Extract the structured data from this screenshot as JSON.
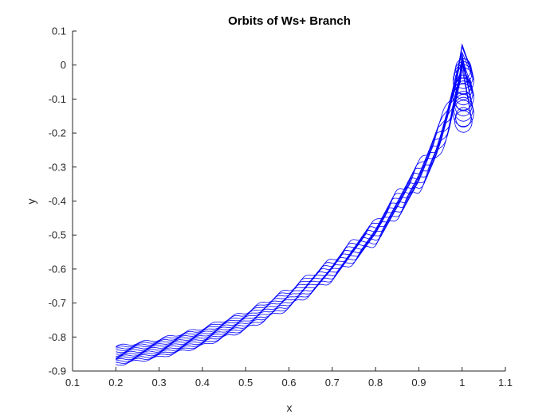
{
  "chart_data": {
    "type": "line",
    "title": "Orbits of Ws+ Branch",
    "xlabel": "x",
    "ylabel": "y",
    "xlim": [
      0.1,
      1.1
    ],
    "ylim": [
      -0.9,
      0.1
    ],
    "xticks": [
      0.1,
      0.2,
      0.3,
      0.4,
      0.5,
      0.6,
      0.7,
      0.8,
      0.9,
      1,
      1.1
    ],
    "yticks": [
      0.1,
      0,
      -0.1,
      -0.2,
      -0.3,
      -0.4,
      -0.5,
      -0.6,
      -0.7,
      -0.8,
      -0.9
    ],
    "xtick_labels": [
      "0.1",
      "0.2",
      "0.3",
      "0.4",
      "0.5",
      "0.6",
      "0.7",
      "0.8",
      "0.9",
      "1",
      "1.1"
    ],
    "ytick_labels": [
      "0.1",
      "0",
      "-0.1",
      "-0.2",
      "-0.3",
      "-0.4",
      "-0.5",
      "-0.6",
      "-0.7",
      "-0.8",
      "-0.9"
    ],
    "grid": false,
    "box": false,
    "line_color": "#0000ff",
    "series": [
      {
        "values": [
          [
            0.2,
            -0.828
          ],
          [
            0.3,
            -0.807
          ],
          [
            0.4,
            -0.774
          ],
          [
            0.5,
            -0.727
          ],
          [
            0.6,
            -0.661
          ],
          [
            0.7,
            -0.575
          ],
          [
            0.8,
            -0.466
          ],
          [
            0.9,
            -0.3
          ],
          [
            0.95,
            -0.18
          ],
          [
            0.99,
            -0.02
          ],
          [
            1.0,
            0.04
          ],
          [
            1.01,
            0.04
          ],
          [
            1.02,
            0.0
          ]
        ]
      },
      {
        "values": [
          [
            0.2,
            -0.882
          ],
          [
            0.3,
            -0.86
          ],
          [
            0.4,
            -0.826
          ],
          [
            0.5,
            -0.778
          ],
          [
            0.6,
            -0.713
          ],
          [
            0.7,
            -0.628
          ],
          [
            0.8,
            -0.518
          ],
          [
            0.9,
            -0.36
          ],
          [
            0.94,
            -0.28
          ],
          [
            0.97,
            -0.18
          ],
          [
            0.995,
            -0.06
          ],
          [
            1.0,
            0.0
          ]
        ]
      }
    ]
  }
}
